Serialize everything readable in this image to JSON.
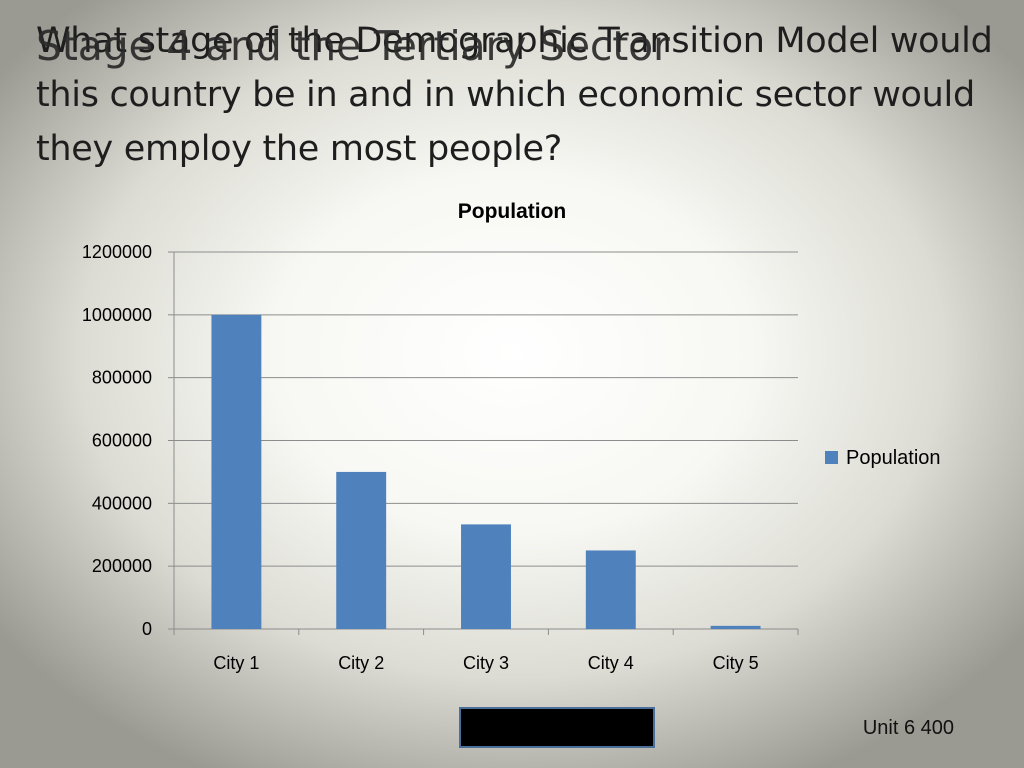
{
  "slide": {
    "question": "What stage of the Demographic Transition Model would this country be in and in which economic sector would they employ the most people?",
    "overlay_title": "Stage 4 and the Tertiary Sector",
    "footer": "Unit 6 400"
  },
  "chart_data": {
    "type": "bar",
    "title": "Population",
    "categories": [
      "City 1",
      "City 2",
      "City 3",
      "City 4",
      "City 5"
    ],
    "series": [
      {
        "name": "Population",
        "values": [
          1000000,
          500000,
          333000,
          250000,
          10000
        ],
        "color": "#4f81bd"
      }
    ],
    "yticks": [
      "0",
      "200000",
      "400000",
      "600000",
      "800000",
      "1000000",
      "1200000"
    ],
    "ylim": [
      0,
      1200000
    ],
    "grid": true,
    "legend": "right",
    "xlabel": "",
    "ylabel": ""
  }
}
